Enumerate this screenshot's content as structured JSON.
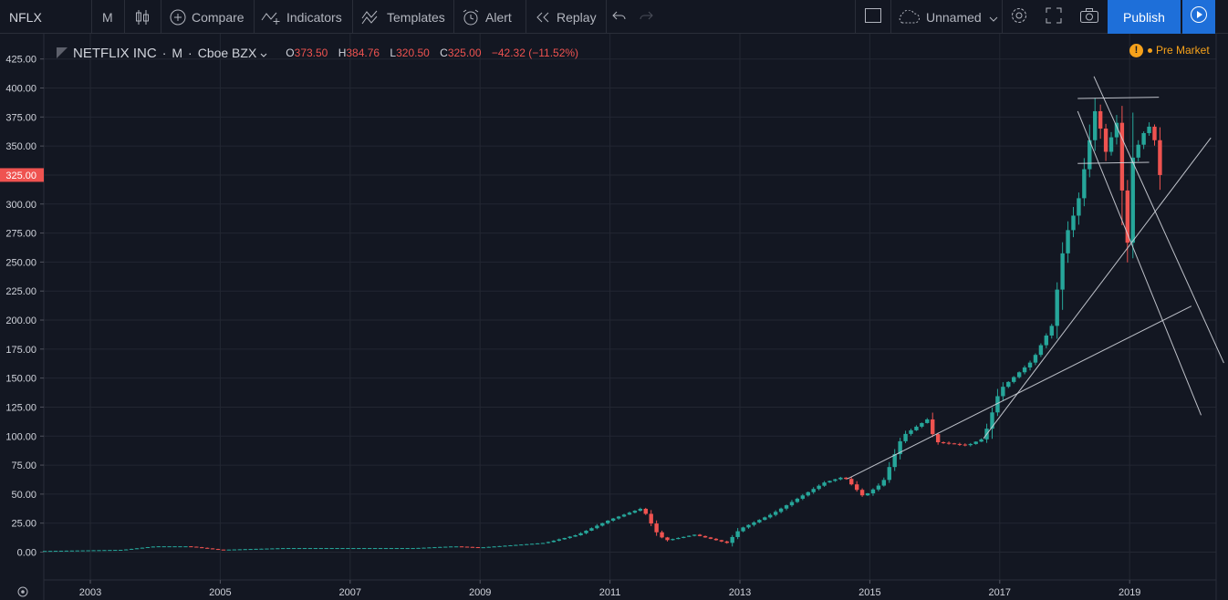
{
  "toolbar": {
    "symbol": "NFLX",
    "interval": "M",
    "compare_label": "Compare",
    "indicators_label": "Indicators",
    "templates_label": "Templates",
    "alert_label": "Alert",
    "replay_label": "Replay",
    "layout_name": "Unnamed",
    "publish_label": "Publish"
  },
  "legend": {
    "title": "NETFLIX INC",
    "interval": "M",
    "exchange": "Cboe BZX",
    "open_key": "O",
    "open": "373.50",
    "high_key": "H",
    "high": "384.76",
    "low_key": "L",
    "low": "320.50",
    "close_key": "C",
    "close": "325.00",
    "change": "−42.32 (−11.52%)"
  },
  "status": {
    "premarket_label": "Pre Market"
  },
  "colors": {
    "background": "#131722",
    "up": "#26a69a",
    "down": "#ef5350",
    "accent": "#1e6fd9",
    "premarket": "#f7a21b"
  },
  "chart_data": {
    "type": "candlestick",
    "interval": "monthly",
    "x_ticks": [
      "2003",
      "2005",
      "2007",
      "2009",
      "2011",
      "2013",
      "2015",
      "2017",
      "2019"
    ],
    "y_ticks": [
      "0.00",
      "25.00",
      "50.00",
      "75.00",
      "100.00",
      "125.00",
      "150.00",
      "175.00",
      "200.00",
      "225.00",
      "250.00",
      "275.00",
      "300.00",
      "325.00",
      "350.00",
      "375.00",
      "400.00",
      "425.00"
    ],
    "ylim": [
      -5,
      432
    ],
    "last_price": "325.00",
    "grid": true,
    "candle_anchors": [
      {
        "t": 2002.3,
        "close": 1.0
      },
      {
        "t": 2003.5,
        "close": 2.0
      },
      {
        "t": 2004.0,
        "close": 5.0
      },
      {
        "t": 2004.5,
        "close": 5.0
      },
      {
        "t": 2005.0,
        "close": 2.0
      },
      {
        "t": 2006.0,
        "close": 3.5
      },
      {
        "t": 2007.0,
        "close": 3.5
      },
      {
        "t": 2008.0,
        "close": 3.5
      },
      {
        "t": 2008.6,
        "close": 5.0
      },
      {
        "t": 2009.0,
        "close": 4.0
      },
      {
        "t": 2010.0,
        "close": 8.0
      },
      {
        "t": 2010.5,
        "close": 15.0
      },
      {
        "t": 2011.0,
        "close": 28.0
      },
      {
        "t": 2011.5,
        "close": 38.0
      },
      {
        "t": 2011.7,
        "close": 18.0
      },
      {
        "t": 2011.85,
        "close": 10.0
      },
      {
        "t": 2012.3,
        "close": 15.0
      },
      {
        "t": 2012.8,
        "close": 8.0
      },
      {
        "t": 2013.0,
        "close": 20.0
      },
      {
        "t": 2013.5,
        "close": 33.0
      },
      {
        "t": 2014.0,
        "close": 50.0
      },
      {
        "t": 2014.3,
        "close": 60.0
      },
      {
        "t": 2014.6,
        "close": 65.0
      },
      {
        "t": 2014.9,
        "close": 48.0
      },
      {
        "t": 2015.2,
        "close": 60.0
      },
      {
        "t": 2015.5,
        "close": 100.0
      },
      {
        "t": 2015.9,
        "close": 115.0
      },
      {
        "t": 2016.0,
        "close": 95.0
      },
      {
        "t": 2016.5,
        "close": 92.0
      },
      {
        "t": 2016.75,
        "close": 98.0
      },
      {
        "t": 2017.0,
        "close": 140.0
      },
      {
        "t": 2017.5,
        "close": 165.0
      },
      {
        "t": 2017.8,
        "close": 195.0
      },
      {
        "t": 2018.0,
        "close": 270.0
      },
      {
        "t": 2018.2,
        "close": 300.0
      },
      {
        "t": 2018.5,
        "close": 390.0
      },
      {
        "t": 2018.6,
        "close": 340.0
      },
      {
        "t": 2018.8,
        "close": 370.0
      },
      {
        "t": 2018.9,
        "close": 300.0
      },
      {
        "t": 2018.97,
        "close": 265.0
      },
      {
        "t": 2019.05,
        "close": 340.0
      },
      {
        "t": 2019.2,
        "close": 360.0
      },
      {
        "t": 2019.35,
        "close": 370.0
      },
      {
        "t": 2019.45,
        "close": 325.0
      }
    ],
    "trendlines": [
      {
        "t1": 2014.65,
        "p1": 63,
        "t2": 2019.95,
        "p2": 212
      },
      {
        "t1": 2016.75,
        "p1": 98,
        "t2": 2020.25,
        "p2": 357
      },
      {
        "t1": 2018.2,
        "p1": 380,
        "t2": 2020.1,
        "p2": 118
      },
      {
        "t1": 2018.45,
        "p1": 410,
        "t2": 2020.45,
        "p2": 163
      },
      {
        "t1": 2018.2,
        "p1": 391,
        "t2": 2019.45,
        "p2": 392
      },
      {
        "t1": 2018.2,
        "p1": 335,
        "t2": 2019.3,
        "p2": 336
      }
    ]
  }
}
